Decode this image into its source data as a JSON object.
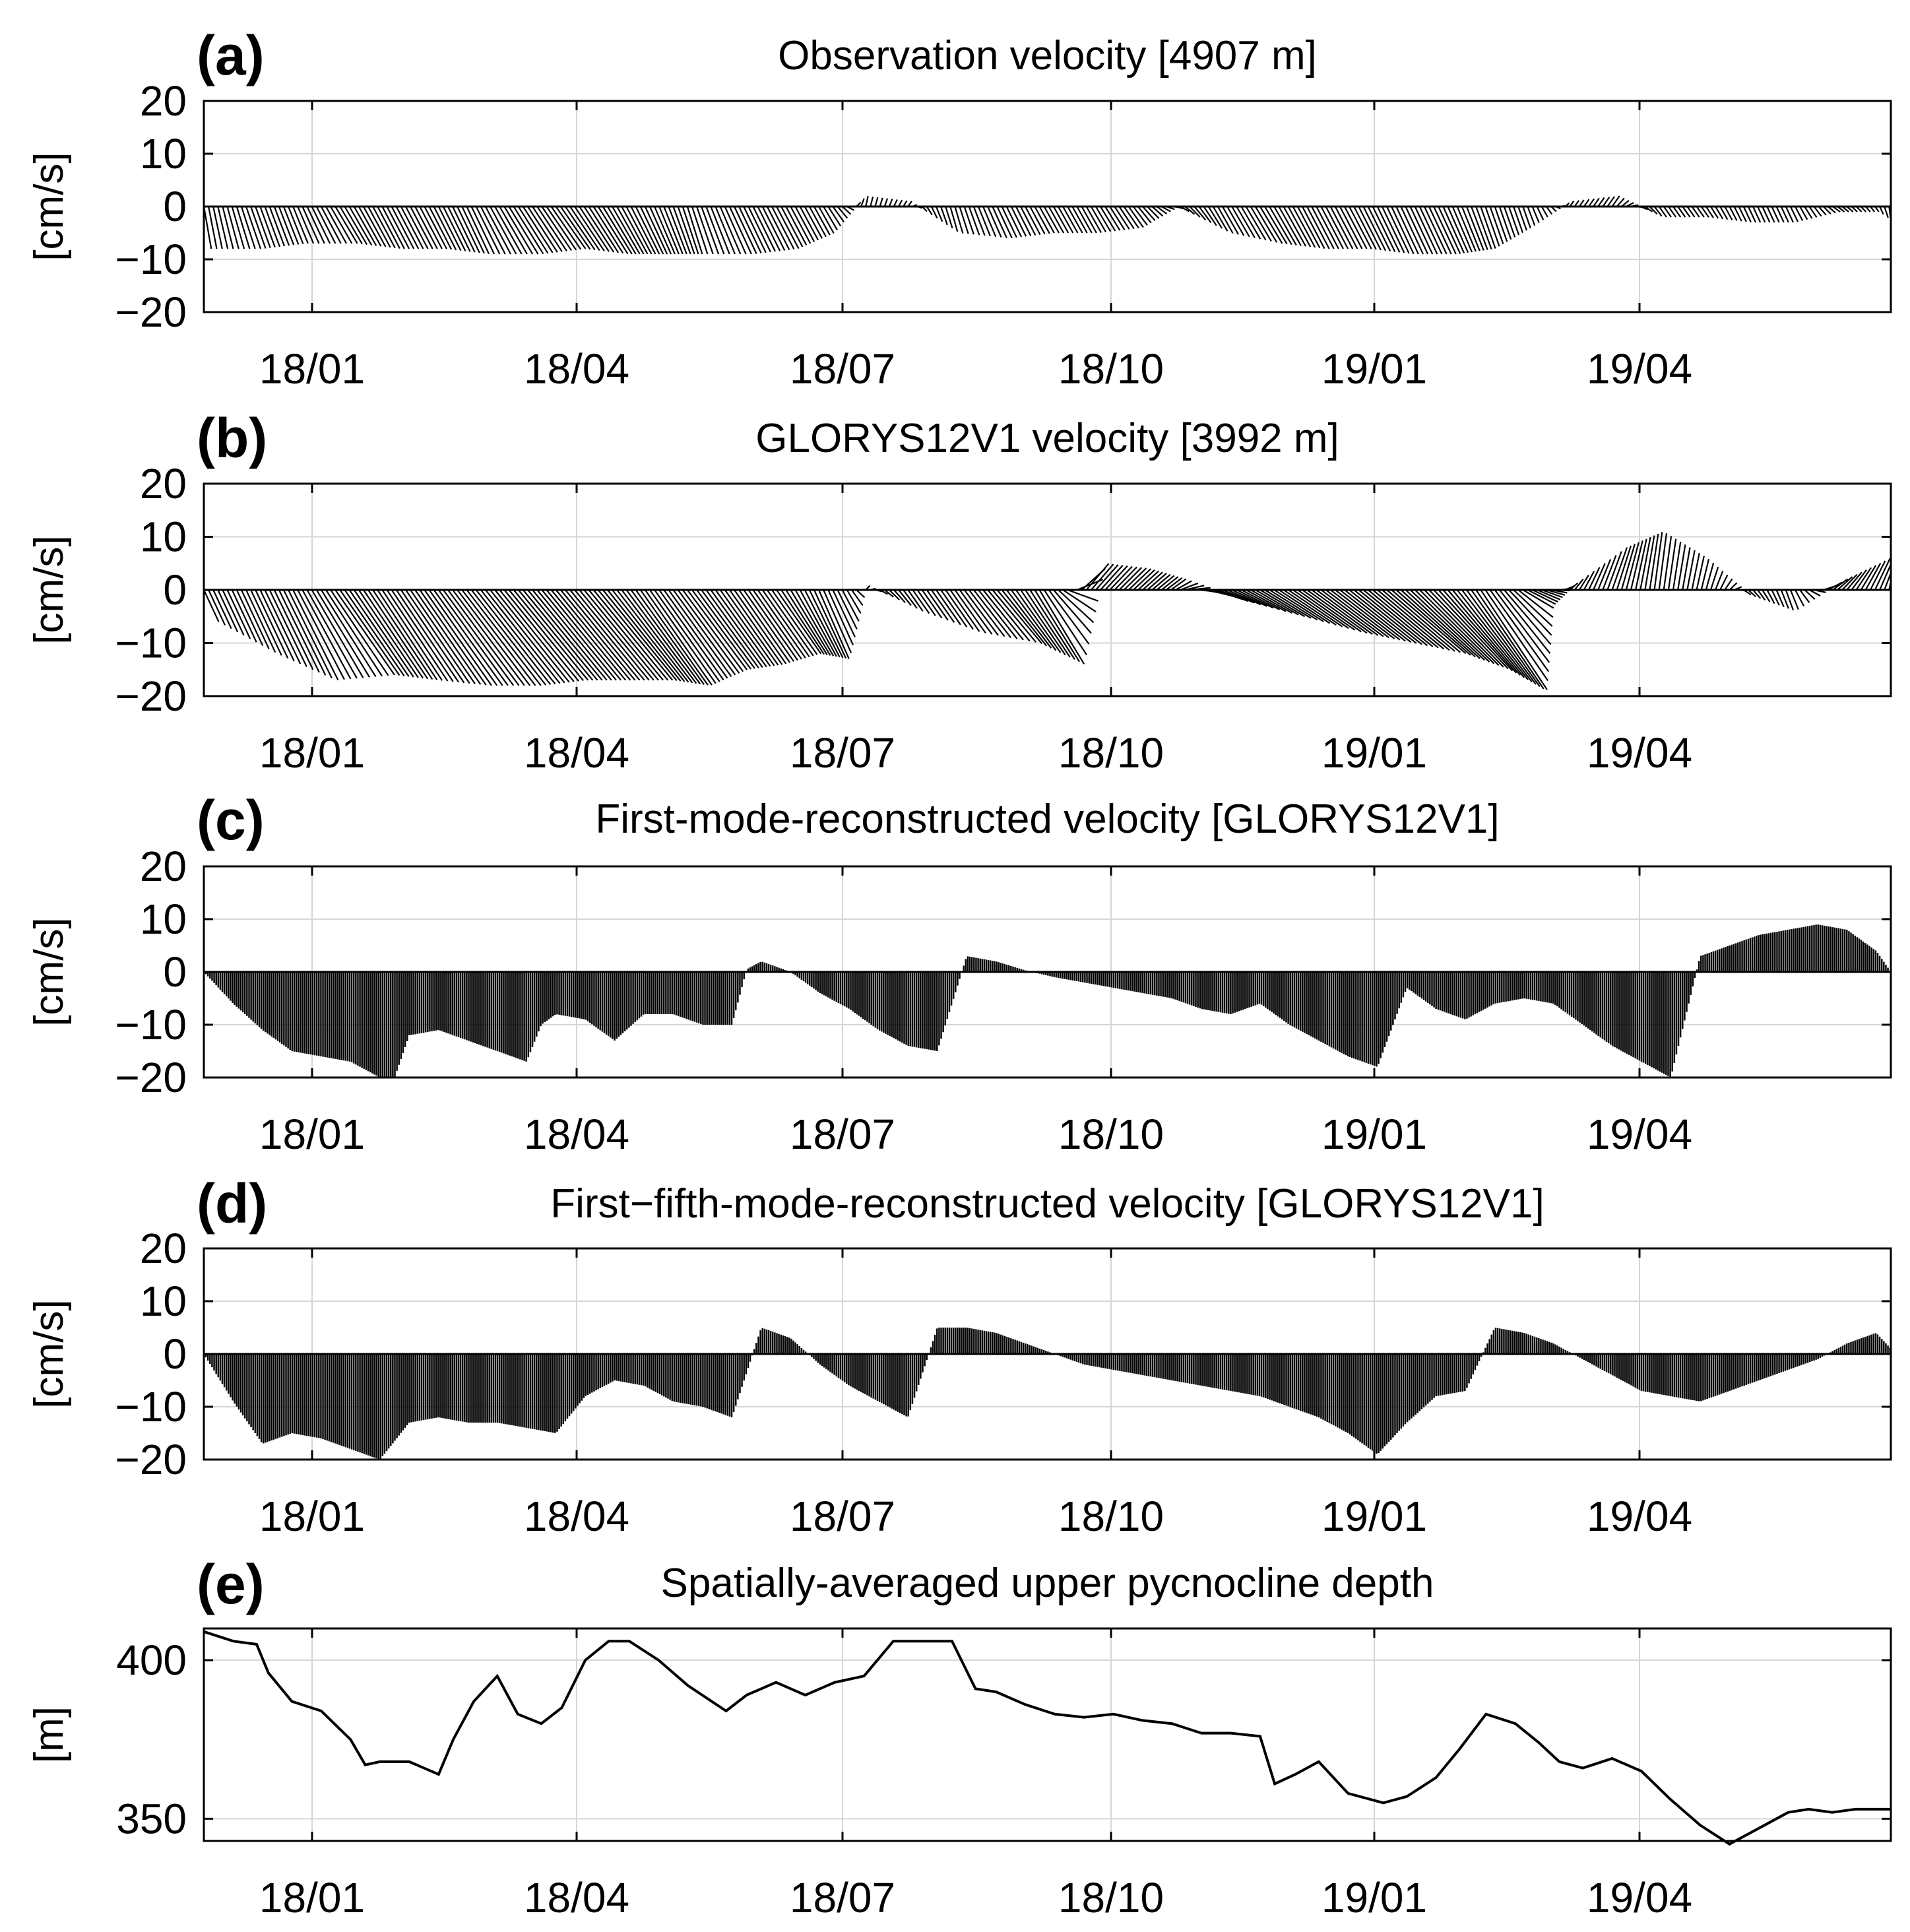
{
  "chart_data": [
    {
      "type": "vector-stick",
      "panel": "(a)",
      "title": "Observation velocity [4907 m]",
      "ylabel": "[cm/s]",
      "ylim": [
        -20,
        20
      ],
      "yticks": [
        20,
        10,
        0,
        -10,
        -20
      ],
      "ytick_labels": [
        "20",
        "10",
        "0",
        "−10",
        "−20"
      ],
      "xticks": [
        "18/01",
        "18/04",
        "18/07",
        "18/10",
        "19/01",
        "19/04"
      ],
      "series": [
        {
          "name": "u",
          "t": [
            0,
            15,
            30,
            45,
            60,
            75,
            90,
            105,
            120,
            135,
            150,
            165,
            180,
            195,
            210,
            225,
            240,
            255,
            270,
            285,
            300,
            315,
            330,
            345,
            360,
            375,
            390,
            405,
            420,
            435,
            450,
            465,
            480,
            495,
            510,
            525,
            540,
            555,
            570,
            575
          ],
          "values": [
            1,
            2,
            2,
            3,
            3,
            3,
            3,
            4,
            4,
            4,
            3,
            2,
            3,
            3,
            2,
            0.3,
            0.5,
            1,
            2,
            2,
            2,
            2,
            1,
            2,
            3,
            3,
            3,
            3,
            3,
            2,
            1,
            0.5,
            1,
            1,
            1,
            1,
            1,
            1,
            0.5,
            0.5
          ]
        },
        {
          "name": "v",
          "t": [
            0,
            15,
            30,
            45,
            60,
            75,
            90,
            105,
            120,
            135,
            150,
            165,
            180,
            195,
            210,
            225,
            240,
            255,
            270,
            285,
            300,
            315,
            330,
            345,
            360,
            375,
            390,
            405,
            420,
            435,
            450,
            465,
            480,
            495,
            510,
            525,
            540,
            555,
            570,
            575
          ],
          "values": [
            -8,
            -8,
            -7,
            -7,
            -8,
            -8,
            -9,
            -9,
            -8,
            -9,
            -9,
            -9,
            -9,
            -8,
            -5,
            2,
            1,
            -5,
            -6,
            -5,
            -5,
            -4,
            0,
            -5,
            -7,
            -8,
            -8,
            -9,
            -9,
            -8,
            -4,
            1,
            2,
            -2,
            -2,
            -3,
            -3,
            -1,
            -1,
            -3
          ]
        }
      ]
    },
    {
      "type": "vector-stick",
      "panel": "(b)",
      "title": "GLORYS12V1 velocity [3992 m]",
      "ylabel": "[cm/s]",
      "ylim": [
        -20,
        20
      ],
      "yticks": [
        20,
        10,
        0,
        -10,
        -20
      ],
      "ytick_labels": [
        "20",
        "10",
        "0",
        "−10",
        "−20"
      ],
      "xticks": [
        "18/01",
        "18/04",
        "18/07",
        "18/10",
        "19/01",
        "19/04"
      ],
      "series": [
        {
          "name": "u",
          "t": [
            0,
            15,
            30,
            45,
            60,
            75,
            90,
            105,
            120,
            135,
            150,
            165,
            180,
            195,
            210,
            225,
            240,
            255,
            270,
            285,
            300,
            315,
            330,
            345,
            360,
            375,
            390,
            405,
            420,
            435,
            450,
            465,
            480,
            495,
            510,
            525,
            540,
            555,
            570,
            575
          ],
          "values": [
            2,
            4,
            6,
            8,
            8,
            9,
            10,
            10,
            10,
            10,
            9,
            8,
            7,
            6,
            4,
            0.5,
            2,
            4,
            6,
            6,
            3,
            3,
            2,
            4,
            6,
            8,
            9,
            10,
            10,
            9,
            4,
            1,
            2,
            1,
            1,
            1,
            1,
            2,
            2,
            1
          ]
        },
        {
          "name": "v",
          "t": [
            0,
            15,
            30,
            45,
            60,
            75,
            90,
            105,
            120,
            135,
            150,
            165,
            180,
            195,
            210,
            225,
            240,
            255,
            270,
            285,
            300,
            315,
            330,
            345,
            360,
            375,
            390,
            405,
            420,
            435,
            450,
            465,
            480,
            495,
            510,
            525,
            540,
            555,
            570,
            575
          ],
          "values": [
            -6,
            -12,
            -17,
            -16,
            -17,
            -18,
            -18,
            -17,
            -17,
            -17,
            -18,
            -15,
            -14,
            -12,
            -13,
            1,
            -4,
            -8,
            -10,
            -14,
            5,
            4,
            2,
            -2,
            -5,
            -8,
            -10,
            -12,
            -15,
            -19,
            -3,
            1,
            8,
            11,
            6,
            -1,
            -4,
            2,
            6,
            1
          ]
        }
      ]
    },
    {
      "type": "vector-stick",
      "panel": "(c)",
      "title": "First-mode-reconstructed velocity [GLORYS12V1]",
      "ylabel": "[cm/s]",
      "ylim": [
        -20,
        20
      ],
      "yticks": [
        20,
        10,
        0,
        -10,
        -20
      ],
      "ytick_labels": [
        "20",
        "10",
        "0",
        "−10",
        "−20"
      ],
      "xticks": [
        "18/01",
        "18/04",
        "18/07",
        "18/10",
        "19/01",
        "19/04"
      ],
      "series": [
        {
          "name": "v",
          "t": [
            0,
            10,
            20,
            30,
            40,
            50,
            60,
            65,
            70,
            80,
            90,
            100,
            110,
            115,
            120,
            130,
            140,
            150,
            160,
            170,
            180,
            185,
            190,
            200,
            210,
            220,
            230,
            240,
            250,
            260,
            270,
            280,
            290,
            300,
            310,
            320,
            330,
            340,
            350,
            360,
            370,
            380,
            390,
            400,
            410,
            420,
            430,
            440,
            450,
            460,
            470,
            480,
            490,
            500,
            510,
            520,
            530,
            540,
            550,
            560,
            570,
            575
          ],
          "values": [
            0,
            -6,
            -11,
            -15,
            -16,
            -17,
            -20,
            -20,
            -12,
            -11,
            -13,
            -15,
            -17,
            -10,
            -8,
            -9,
            -13,
            -8,
            -8,
            -10,
            -10,
            0.5,
            2,
            0,
            -4,
            -7,
            -11,
            -14,
            -15,
            3,
            2,
            0.3,
            -1,
            -2,
            -3,
            -4,
            -5,
            -7,
            -8,
            -6,
            -10,
            -13,
            -16,
            -18,
            -3,
            -7,
            -9,
            -6,
            -5,
            -6,
            -10,
            -14,
            -17,
            -20,
            3,
            5,
            7,
            8,
            9,
            8,
            4,
            0
          ]
        }
      ]
    },
    {
      "type": "vector-stick",
      "panel": "(d)",
      "title": "First−fifth-mode-reconstructed velocity [GLORYS12V1]",
      "ylabel": "[cm/s]",
      "ylim": [
        -20,
        20
      ],
      "yticks": [
        20,
        10,
        0,
        -10,
        -20
      ],
      "ytick_labels": [
        "20",
        "10",
        "0",
        "−10",
        "−20"
      ],
      "xticks": [
        "18/01",
        "18/04",
        "18/07",
        "18/10",
        "19/01",
        "19/04"
      ],
      "series": [
        {
          "name": "v",
          "t": [
            0,
            10,
            20,
            30,
            40,
            50,
            60,
            70,
            80,
            90,
            100,
            110,
            120,
            130,
            140,
            150,
            160,
            170,
            180,
            190,
            200,
            210,
            220,
            230,
            240,
            250,
            260,
            270,
            280,
            290,
            300,
            310,
            320,
            330,
            340,
            350,
            360,
            370,
            380,
            390,
            400,
            410,
            420,
            430,
            440,
            450,
            460,
            470,
            480,
            490,
            500,
            510,
            520,
            530,
            540,
            550,
            560,
            570,
            575
          ],
          "values": [
            0,
            -9,
            -17,
            -15,
            -16,
            -18,
            -20,
            -13,
            -12,
            -13,
            -13,
            -14,
            -15,
            -8,
            -5,
            -6,
            -9,
            -10,
            -12,
            5,
            3,
            -2,
            -6,
            -9,
            -12,
            5,
            5,
            4,
            2,
            0,
            -2,
            -3,
            -4,
            -5,
            -6,
            -7,
            -8,
            -10,
            -12,
            -15,
            -19,
            -13,
            -8,
            -7,
            5,
            4,
            2,
            -1,
            -4,
            -7,
            -8,
            -9,
            -7,
            -5,
            -3,
            -1,
            2,
            4,
            1
          ]
        }
      ]
    },
    {
      "type": "line",
      "panel": "(e)",
      "title": "Spatially-averaged upper pycnocline depth",
      "ylabel": "[m]",
      "ylim": [
        343,
        410
      ],
      "yticks": [
        400,
        350
      ],
      "ytick_labels": [
        "400",
        "350"
      ],
      "xticks": [
        "18/01",
        "18/04",
        "18/07",
        "18/10",
        "19/01",
        "19/04"
      ],
      "x": [
        0,
        10,
        18,
        22,
        30,
        40,
        50,
        55,
        60,
        70,
        80,
        85,
        92,
        100,
        107,
        115,
        122,
        130,
        138,
        145,
        155,
        165,
        178,
        185,
        195,
        205,
        215,
        225,
        235,
        247,
        255,
        263,
        270,
        280,
        290,
        300,
        310,
        320,
        330,
        340,
        350,
        360,
        365,
        372,
        380,
        390,
        402,
        410,
        420,
        428,
        437,
        447,
        455,
        462,
        470,
        480,
        490,
        500,
        510,
        520,
        530,
        540,
        547,
        555,
        563,
        570,
        575
      ],
      "values": [
        409,
        406,
        405,
        396,
        387,
        384,
        375,
        367,
        368,
        368,
        364,
        375,
        387,
        395,
        383,
        380,
        385,
        400,
        406,
        406,
        400,
        392,
        384,
        389,
        393,
        389,
        393,
        395,
        406,
        406,
        406,
        391,
        390,
        386,
        383,
        382,
        383,
        381,
        380,
        377,
        377,
        376,
        361,
        364,
        368,
        358,
        355,
        357,
        363,
        372,
        383,
        380,
        374,
        368,
        366,
        369,
        365,
        356,
        348,
        342,
        347,
        352,
        353,
        352,
        353,
        353,
        353
      ]
    }
  ]
}
